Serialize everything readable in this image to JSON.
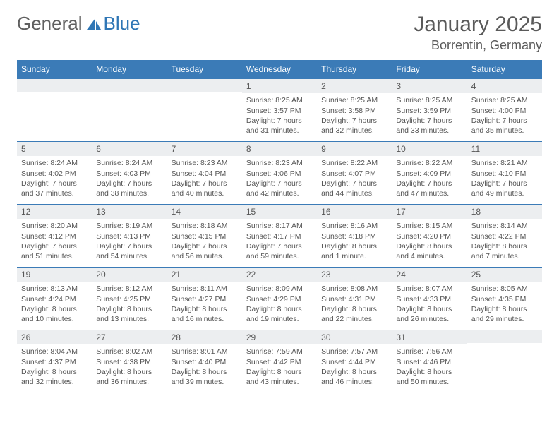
{
  "brand": {
    "name1": "General",
    "name2": "Blue"
  },
  "title": "January 2025",
  "location": "Borrentin, Germany",
  "style": {
    "header_bg": "#3b7bb7",
    "header_text": "#ffffff",
    "border_color": "#3b7bb7",
    "daybar_bg": "#eceef0",
    "text_color": "#555555",
    "page_bg": "#ffffff",
    "title_fontsize": 30,
    "location_fontsize": 18,
    "weekday_fontsize": 12,
    "body_fontsize": 10.5,
    "columns": 7
  },
  "weekdays": [
    "Sunday",
    "Monday",
    "Tuesday",
    "Wednesday",
    "Thursday",
    "Friday",
    "Saturday"
  ],
  "weeks": [
    [
      {
        "day": "",
        "lines": [
          "",
          "",
          "",
          ""
        ]
      },
      {
        "day": "",
        "lines": [
          "",
          "",
          "",
          ""
        ]
      },
      {
        "day": "",
        "lines": [
          "",
          "",
          "",
          ""
        ]
      },
      {
        "day": "1",
        "lines": [
          "Sunrise: 8:25 AM",
          "Sunset: 3:57 PM",
          "Daylight: 7 hours",
          "and 31 minutes."
        ]
      },
      {
        "day": "2",
        "lines": [
          "Sunrise: 8:25 AM",
          "Sunset: 3:58 PM",
          "Daylight: 7 hours",
          "and 32 minutes."
        ]
      },
      {
        "day": "3",
        "lines": [
          "Sunrise: 8:25 AM",
          "Sunset: 3:59 PM",
          "Daylight: 7 hours",
          "and 33 minutes."
        ]
      },
      {
        "day": "4",
        "lines": [
          "Sunrise: 8:25 AM",
          "Sunset: 4:00 PM",
          "Daylight: 7 hours",
          "and 35 minutes."
        ]
      }
    ],
    [
      {
        "day": "5",
        "lines": [
          "Sunrise: 8:24 AM",
          "Sunset: 4:02 PM",
          "Daylight: 7 hours",
          "and 37 minutes."
        ]
      },
      {
        "day": "6",
        "lines": [
          "Sunrise: 8:24 AM",
          "Sunset: 4:03 PM",
          "Daylight: 7 hours",
          "and 38 minutes."
        ]
      },
      {
        "day": "7",
        "lines": [
          "Sunrise: 8:23 AM",
          "Sunset: 4:04 PM",
          "Daylight: 7 hours",
          "and 40 minutes."
        ]
      },
      {
        "day": "8",
        "lines": [
          "Sunrise: 8:23 AM",
          "Sunset: 4:06 PM",
          "Daylight: 7 hours",
          "and 42 minutes."
        ]
      },
      {
        "day": "9",
        "lines": [
          "Sunrise: 8:22 AM",
          "Sunset: 4:07 PM",
          "Daylight: 7 hours",
          "and 44 minutes."
        ]
      },
      {
        "day": "10",
        "lines": [
          "Sunrise: 8:22 AM",
          "Sunset: 4:09 PM",
          "Daylight: 7 hours",
          "and 47 minutes."
        ]
      },
      {
        "day": "11",
        "lines": [
          "Sunrise: 8:21 AM",
          "Sunset: 4:10 PM",
          "Daylight: 7 hours",
          "and 49 minutes."
        ]
      }
    ],
    [
      {
        "day": "12",
        "lines": [
          "Sunrise: 8:20 AM",
          "Sunset: 4:12 PM",
          "Daylight: 7 hours",
          "and 51 minutes."
        ]
      },
      {
        "day": "13",
        "lines": [
          "Sunrise: 8:19 AM",
          "Sunset: 4:13 PM",
          "Daylight: 7 hours",
          "and 54 minutes."
        ]
      },
      {
        "day": "14",
        "lines": [
          "Sunrise: 8:18 AM",
          "Sunset: 4:15 PM",
          "Daylight: 7 hours",
          "and 56 minutes."
        ]
      },
      {
        "day": "15",
        "lines": [
          "Sunrise: 8:17 AM",
          "Sunset: 4:17 PM",
          "Daylight: 7 hours",
          "and 59 minutes."
        ]
      },
      {
        "day": "16",
        "lines": [
          "Sunrise: 8:16 AM",
          "Sunset: 4:18 PM",
          "Daylight: 8 hours",
          "and 1 minute."
        ]
      },
      {
        "day": "17",
        "lines": [
          "Sunrise: 8:15 AM",
          "Sunset: 4:20 PM",
          "Daylight: 8 hours",
          "and 4 minutes."
        ]
      },
      {
        "day": "18",
        "lines": [
          "Sunrise: 8:14 AM",
          "Sunset: 4:22 PM",
          "Daylight: 8 hours",
          "and 7 minutes."
        ]
      }
    ],
    [
      {
        "day": "19",
        "lines": [
          "Sunrise: 8:13 AM",
          "Sunset: 4:24 PM",
          "Daylight: 8 hours",
          "and 10 minutes."
        ]
      },
      {
        "day": "20",
        "lines": [
          "Sunrise: 8:12 AM",
          "Sunset: 4:25 PM",
          "Daylight: 8 hours",
          "and 13 minutes."
        ]
      },
      {
        "day": "21",
        "lines": [
          "Sunrise: 8:11 AM",
          "Sunset: 4:27 PM",
          "Daylight: 8 hours",
          "and 16 minutes."
        ]
      },
      {
        "day": "22",
        "lines": [
          "Sunrise: 8:09 AM",
          "Sunset: 4:29 PM",
          "Daylight: 8 hours",
          "and 19 minutes."
        ]
      },
      {
        "day": "23",
        "lines": [
          "Sunrise: 8:08 AM",
          "Sunset: 4:31 PM",
          "Daylight: 8 hours",
          "and 22 minutes."
        ]
      },
      {
        "day": "24",
        "lines": [
          "Sunrise: 8:07 AM",
          "Sunset: 4:33 PM",
          "Daylight: 8 hours",
          "and 26 minutes."
        ]
      },
      {
        "day": "25",
        "lines": [
          "Sunrise: 8:05 AM",
          "Sunset: 4:35 PM",
          "Daylight: 8 hours",
          "and 29 minutes."
        ]
      }
    ],
    [
      {
        "day": "26",
        "lines": [
          "Sunrise: 8:04 AM",
          "Sunset: 4:37 PM",
          "Daylight: 8 hours",
          "and 32 minutes."
        ]
      },
      {
        "day": "27",
        "lines": [
          "Sunrise: 8:02 AM",
          "Sunset: 4:38 PM",
          "Daylight: 8 hours",
          "and 36 minutes."
        ]
      },
      {
        "day": "28",
        "lines": [
          "Sunrise: 8:01 AM",
          "Sunset: 4:40 PM",
          "Daylight: 8 hours",
          "and 39 minutes."
        ]
      },
      {
        "day": "29",
        "lines": [
          "Sunrise: 7:59 AM",
          "Sunset: 4:42 PM",
          "Daylight: 8 hours",
          "and 43 minutes."
        ]
      },
      {
        "day": "30",
        "lines": [
          "Sunrise: 7:57 AM",
          "Sunset: 4:44 PM",
          "Daylight: 8 hours",
          "and 46 minutes."
        ]
      },
      {
        "day": "31",
        "lines": [
          "Sunrise: 7:56 AM",
          "Sunset: 4:46 PM",
          "Daylight: 8 hours",
          "and 50 minutes."
        ]
      },
      {
        "day": "",
        "lines": [
          "",
          "",
          "",
          ""
        ]
      }
    ]
  ]
}
